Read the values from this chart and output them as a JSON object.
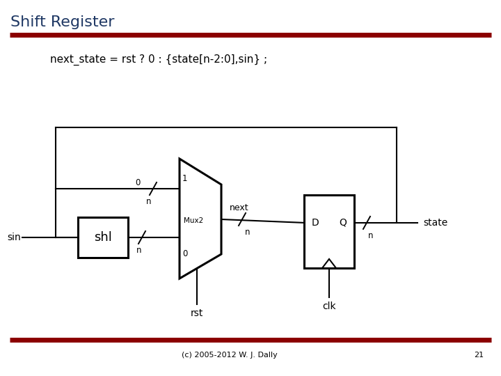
{
  "title": "Shift Register",
  "title_color": "#1f3864",
  "title_fontsize": 16,
  "code_text": "next_state = rst ? 0 : {state[n-2:0],sin} ;",
  "code_fontsize": 11,
  "footer_text": "(c) 2005-2012 W. J. Dally",
  "footer_page": "21",
  "dark_red": "#8b0000",
  "bg_color": "#ffffff",
  "line_color": "#000000",
  "lw": 1.5,
  "lw_thick": 2.2,
  "diagram": {
    "sin_label": "sin",
    "shl_label": "shl",
    "mux_label": "Mux2",
    "next_label": "next",
    "d_label": "D",
    "q_label": "Q",
    "clk_label": "clk",
    "state_label": "state",
    "rst_label": "rst",
    "zero_top": "0",
    "n_top": "n",
    "zero_bot": "0",
    "n_bot": "n",
    "n_next": "n",
    "n_state": "n"
  }
}
